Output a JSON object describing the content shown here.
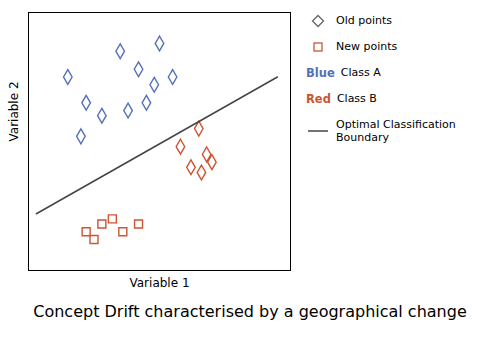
{
  "chart_data": {
    "type": "scatter",
    "title": "Concept Drift characterised by a geographical change",
    "xlabel": "Variable 1",
    "ylabel": "Variable 2",
    "series": [
      {
        "name": "Class A",
        "color": "#5570bb",
        "marker": "diamond",
        "values": [
          [
            1.5,
            7.5
          ],
          [
            2.2,
            6.5
          ],
          [
            2.8,
            6.0
          ],
          [
            2.0,
            5.2
          ],
          [
            3.5,
            8.5
          ],
          [
            4.2,
            7.8
          ],
          [
            4.8,
            7.2
          ],
          [
            5.0,
            8.8
          ],
          [
            5.5,
            7.5
          ],
          [
            4.5,
            6.5
          ],
          [
            3.8,
            6.2
          ]
        ]
      },
      {
        "name": "Class B",
        "color": "#cc5533",
        "marker": "diamond",
        "values": [
          [
            5.8,
            4.8
          ],
          [
            6.5,
            5.5
          ],
          [
            6.8,
            4.5
          ],
          [
            6.2,
            4.0
          ],
          [
            7.0,
            4.2
          ],
          [
            6.6,
            3.8
          ]
        ]
      },
      {
        "name": "New points",
        "color": "#cc5533",
        "marker": "square",
        "values": [
          [
            2.2,
            1.5
          ],
          [
            2.8,
            1.8
          ],
          [
            3.2,
            2.0
          ],
          [
            3.6,
            1.5
          ],
          [
            4.2,
            1.8
          ],
          [
            2.5,
            1.2
          ]
        ]
      },
      {
        "name": "Optimal Classification\nBoundary",
        "type": "line",
        "color": "#444444",
        "values": [
          [
            0.3,
            2.2
          ],
          [
            9.5,
            7.5
          ]
        ]
      }
    ],
    "annotations": [
      {
        "text": "Old points",
        "marker": "diamond",
        "color": "#666666"
      },
      {
        "text": "Blue",
        "color": "#5570bb"
      },
      {
        "text": "Red",
        "color": "#cc5533"
      }
    ],
    "xlim": [
      0,
      10
    ],
    "ylim": [
      0,
      10
    ],
    "xticks": [],
    "yticks": [],
    "tick_labels": false,
    "grid": false
  }
}
